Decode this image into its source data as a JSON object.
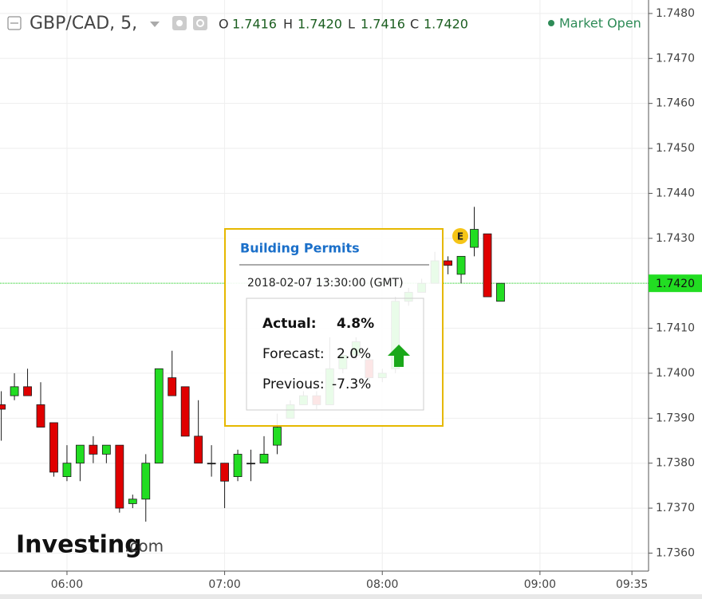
{
  "header": {
    "symbol": "GBP/CAD, 5,",
    "ohlc": [
      {
        "key": "O",
        "value": "1.7416"
      },
      {
        "key": "H",
        "value": "1.7420"
      },
      {
        "key": "L",
        "value": "1.7416"
      },
      {
        "key": "C",
        "value": "1.7420"
      }
    ],
    "status": "Market Open"
  },
  "popup": {
    "title": "Building Permits",
    "datetime": "2018-02-07 13:30:00 (GMT)",
    "rows": [
      [
        "Actual:",
        "4.8%"
      ],
      [
        "Forecast:",
        "2.0%"
      ],
      [
        "Previous:",
        "-7.3%"
      ]
    ]
  },
  "event_marker": "E",
  "logo": {
    "brand": "Investing",
    "suffix": ".com"
  },
  "chart_data": {
    "type": "candlestick",
    "categories": [
      null,
      null,
      null,
      null,
      null,
      "06:00",
      null,
      null,
      null,
      null,
      null,
      null,
      null,
      null,
      null,
      null,
      null,
      "07:00",
      null,
      null,
      null,
      null,
      null,
      null,
      null,
      null,
      null,
      null,
      null,
      "08:00",
      null,
      null,
      null,
      null,
      null,
      null,
      null,
      null,
      null,
      null,
      null,
      "09:00",
      null,
      null,
      null,
      null,
      null,
      null,
      "09:35"
    ],
    "open": [
      1.7393,
      1.7395,
      1.7397,
      1.7393,
      1.7389,
      1.7377,
      1.738,
      1.7384,
      1.7382,
      1.7384,
      1.7371,
      1.7372,
      1.738,
      1.7399,
      1.7397,
      1.7386,
      1.738,
      1.738,
      1.7377,
      1.738,
      1.738,
      1.7384,
      1.739,
      1.7393,
      1.7395,
      1.7393,
      1.7401,
      1.7404,
      1.7403,
      1.7399,
      1.7401,
      1.7416,
      1.7418,
      1.742,
      1.7425,
      1.7422,
      1.7428,
      1.7431,
      1.7416,
      null,
      null,
      null,
      null,
      null,
      null,
      null,
      null,
      null,
      null
    ],
    "high": [
      1.7396,
      1.74,
      1.7401,
      1.7398,
      1.7389,
      1.7384,
      1.7384,
      1.7386,
      1.7384,
      1.7384,
      1.7373,
      1.7382,
      1.7401,
      1.7405,
      1.7397,
      1.7394,
      1.7384,
      1.738,
      1.7383,
      1.7383,
      1.7386,
      1.7391,
      1.7394,
      1.7396,
      1.7396,
      1.7408,
      1.7405,
      1.7408,
      1.7404,
      1.7401,
      1.7417,
      1.7419,
      1.7421,
      1.7427,
      1.7426,
      1.7426,
      1.7437,
      1.7431,
      1.742,
      null,
      null,
      null,
      null,
      null,
      null,
      null,
      null,
      null,
      null
    ],
    "low": [
      1.7385,
      1.7394,
      1.7395,
      1.7388,
      1.7377,
      1.7376,
      1.7376,
      1.738,
      1.738,
      1.7369,
      1.737,
      1.7367,
      1.738,
      1.7395,
      1.7386,
      1.738,
      1.7377,
      1.737,
      1.7376,
      1.7376,
      1.738,
      1.7382,
      1.739,
      1.7393,
      1.7392,
      1.7393,
      1.74,
      1.7403,
      1.7398,
      1.7398,
      1.74,
      1.7415,
      1.7418,
      1.742,
      1.7422,
      1.742,
      1.7426,
      1.7417,
      1.7416,
      null,
      null,
      null,
      null,
      null,
      null,
      null,
      null,
      null,
      null
    ],
    "close": [
      1.7392,
      1.7397,
      1.7395,
      1.7388,
      1.7378,
      1.738,
      1.7384,
      1.7382,
      1.7384,
      1.737,
      1.7372,
      1.738,
      1.7401,
      1.7395,
      1.7386,
      1.738,
      1.738,
      1.7376,
      1.7382,
      1.738,
      1.7382,
      1.7388,
      1.7393,
      1.7395,
      1.7393,
      1.7401,
      1.7404,
      1.7407,
      1.7399,
      1.74,
      1.7416,
      1.7418,
      1.742,
      1.7425,
      1.7424,
      1.7426,
      1.7432,
      1.7417,
      1.742,
      null,
      null,
      null,
      null,
      null,
      null,
      null,
      null,
      null,
      null
    ],
    "up_color": "#22dd22",
    "down_color": "#e00000",
    "border_color": "#1a1a1a",
    "ylim": [
      1.7356,
      1.7483
    ],
    "yticks": [
      {
        "value": 1.736,
        "label": "1.7360"
      },
      {
        "value": 1.737,
        "label": "1.7370"
      },
      {
        "value": 1.738,
        "label": "1.7380"
      },
      {
        "value": 1.739,
        "label": "1.7390"
      },
      {
        "value": 1.74,
        "label": "1.7400"
      },
      {
        "value": 1.741,
        "label": "1.7410"
      },
      {
        "value": 1.742,
        "label": "1.7420"
      },
      {
        "value": 1.743,
        "label": "1.7430"
      },
      {
        "value": 1.744,
        "label": "1.7440"
      },
      {
        "value": 1.745,
        "label": "1.7450"
      },
      {
        "value": 1.746,
        "label": "1.7460"
      },
      {
        "value": 1.747,
        "label": "1.7470"
      },
      {
        "value": 1.748,
        "label": "1.7480"
      }
    ],
    "last_price": {
      "value": 1.742,
      "label": "1.7420",
      "color": "#22dd22"
    },
    "grid": true
  }
}
